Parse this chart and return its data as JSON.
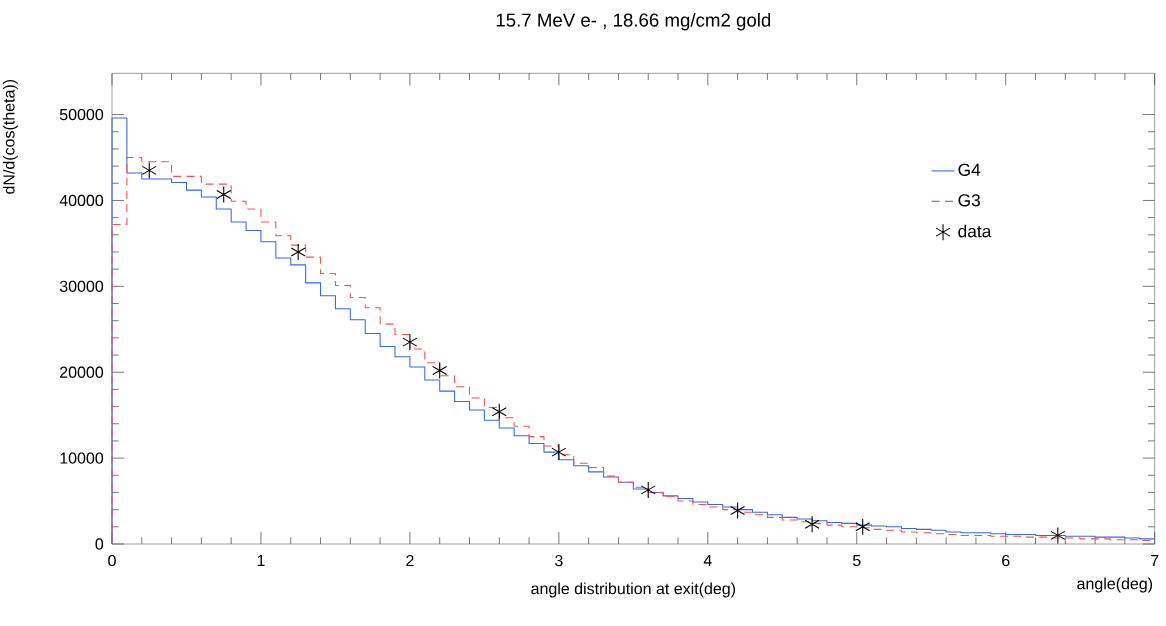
{
  "chart_data": {
    "type": "histogram",
    "title": "15.7 MeV e- , 18.66 mg/cm2 gold",
    "xlabel": "angle distribution at exit(deg)",
    "ylabel": "dN/d(cos(theta))",
    "annotations": [
      "angle(deg)"
    ],
    "bins": [
      0,
      0.1,
      0.2,
      0.3,
      0.4,
      0.5,
      0.6,
      0.7,
      0.8,
      0.9,
      1.0,
      1.1,
      1.2,
      1.3,
      1.4,
      1.5,
      1.6,
      1.7,
      1.8,
      1.9,
      2.0,
      2.1,
      2.2,
      2.3,
      2.4,
      2.5,
      2.6,
      2.7,
      2.8,
      2.9,
      3.0,
      3.1,
      3.2,
      3.3,
      3.4,
      3.5,
      3.6,
      3.7,
      3.8,
      3.9,
      4.0,
      4.1,
      4.2,
      4.3,
      4.4,
      4.5,
      4.6,
      4.7,
      4.8,
      4.9,
      5.0,
      5.1,
      5.2,
      5.3,
      5.4,
      5.5,
      5.6,
      5.7,
      5.8,
      5.9,
      6.0,
      6.1,
      6.2,
      6.3,
      6.4,
      6.5,
      6.6,
      6.7,
      6.8,
      6.9,
      7.0
    ],
    "series": [
      {
        "name": "G4",
        "color": "#3366ff",
        "line_style": "solid",
        "values": [
          49600,
          43200,
          42500,
          42500,
          42100,
          41200,
          40400,
          39000,
          37500,
          36500,
          35200,
          33300,
          32500,
          30400,
          28900,
          27400,
          26100,
          24500,
          23000,
          21800,
          20600,
          19100,
          17800,
          16600,
          15600,
          14400,
          13500,
          12600,
          11700,
          10700,
          9800,
          9100,
          8400,
          7800,
          7200,
          6400,
          6000,
          5600,
          5300,
          4900,
          4600,
          4300,
          4000,
          3700,
          3400,
          3100,
          2900,
          2700,
          2500,
          2400,
          2200,
          2100,
          2000,
          1800,
          1700,
          1600,
          1400,
          1300,
          1300,
          1200,
          1100,
          1100,
          1000,
          1000,
          900,
          900,
          800,
          800,
          700,
          600
        ]
      },
      {
        "name": "G3",
        "color": "#ff4d4d",
        "line_style": "dashed",
        "values": [
          37200,
          45000,
          44500,
          44500,
          42800,
          42800,
          41900,
          41900,
          39900,
          39000,
          37500,
          35900,
          34800,
          33400,
          31500,
          30100,
          28700,
          27500,
          25600,
          24400,
          22700,
          21100,
          19600,
          18300,
          17000,
          15900,
          14700,
          13700,
          12500,
          11400,
          10400,
          9400,
          8900,
          7900,
          7200,
          6600,
          6000,
          5500,
          5000,
          4600,
          4300,
          4000,
          3700,
          3400,
          3100,
          2800,
          2600,
          2400,
          2200,
          2000,
          1900,
          1700,
          1600,
          1400,
          1300,
          1200,
          1100,
          1000,
          1000,
          900,
          900,
          800,
          800,
          700,
          700,
          600,
          600,
          500,
          500,
          400
        ]
      },
      {
        "name": "data",
        "type": "scatter",
        "color": "#000000",
        "marker": "cross",
        "x": [
          0.25,
          0.75,
          1.25,
          2.0,
          2.2,
          2.6,
          3.0,
          3.6,
          4.2,
          4.7,
          5.04,
          6.35
        ],
        "values": [
          43500,
          40700,
          34000,
          23500,
          20200,
          15400,
          10700,
          6300,
          3900,
          2300,
          2000,
          1000
        ]
      }
    ],
    "xlim": [
      0,
      7
    ],
    "ylim": [
      0,
      54800
    ],
    "xticks": [
      0,
      1,
      2,
      3,
      4,
      5,
      6,
      7
    ],
    "yticks": [
      0,
      10000,
      20000,
      30000,
      40000,
      50000
    ],
    "legend": "top right",
    "grid": false
  }
}
